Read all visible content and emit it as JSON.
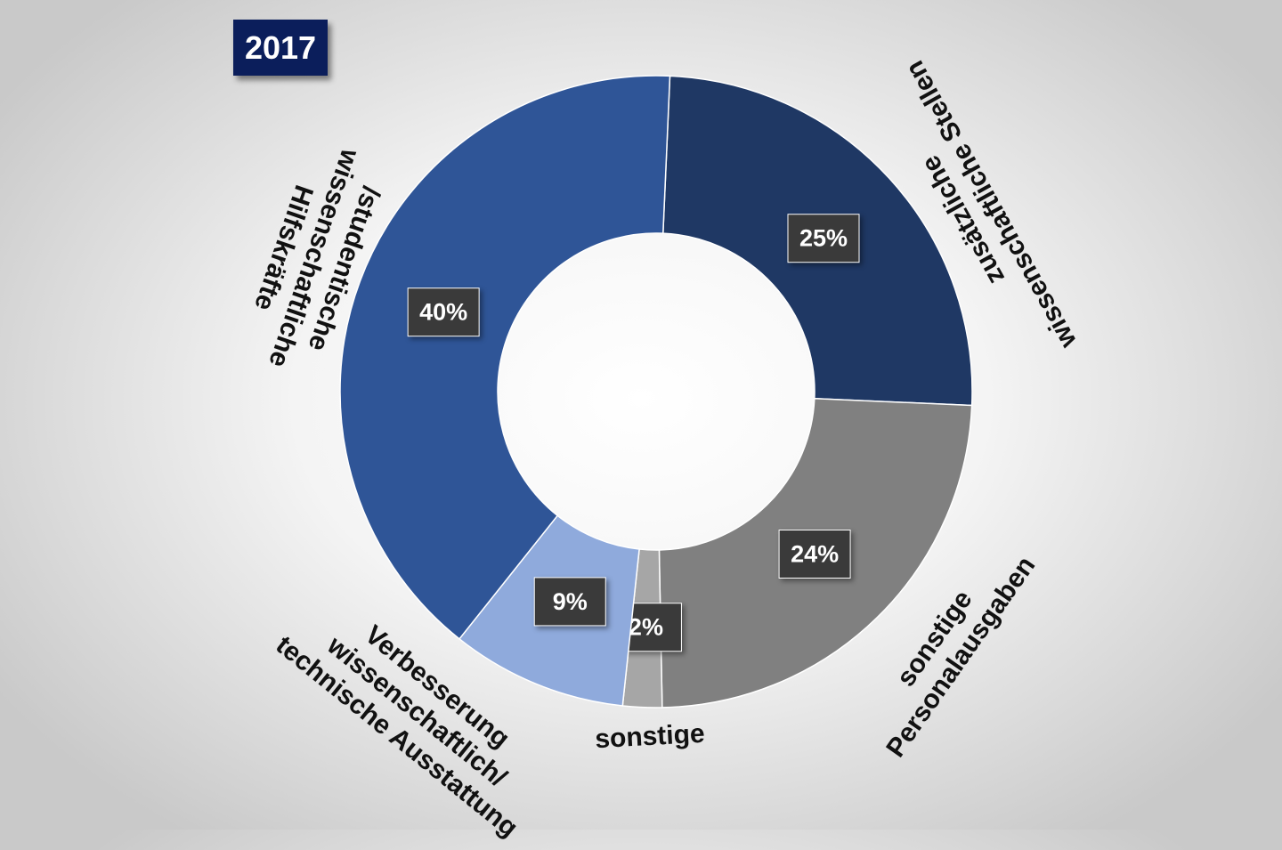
{
  "chart_data": {
    "type": "donut",
    "title": "2017",
    "categories": [
      "zusätzliche wissenschaftliche Stellen",
      "sonstige Personalausgaben",
      "sonstige",
      "Verbesserung wissenschaftlich/ technische Ausstattung",
      "/studentische wissenschaftliche Hilfskräfte"
    ],
    "values": [
      25,
      24,
      2,
      9,
      40
    ],
    "value_labels": [
      "25%",
      "24%",
      "2%",
      "9%",
      "40%"
    ],
    "colors": [
      "#1f3864",
      "#808080",
      "#a6a6a6",
      "#8faadc",
      "#2f5597"
    ]
  }
}
